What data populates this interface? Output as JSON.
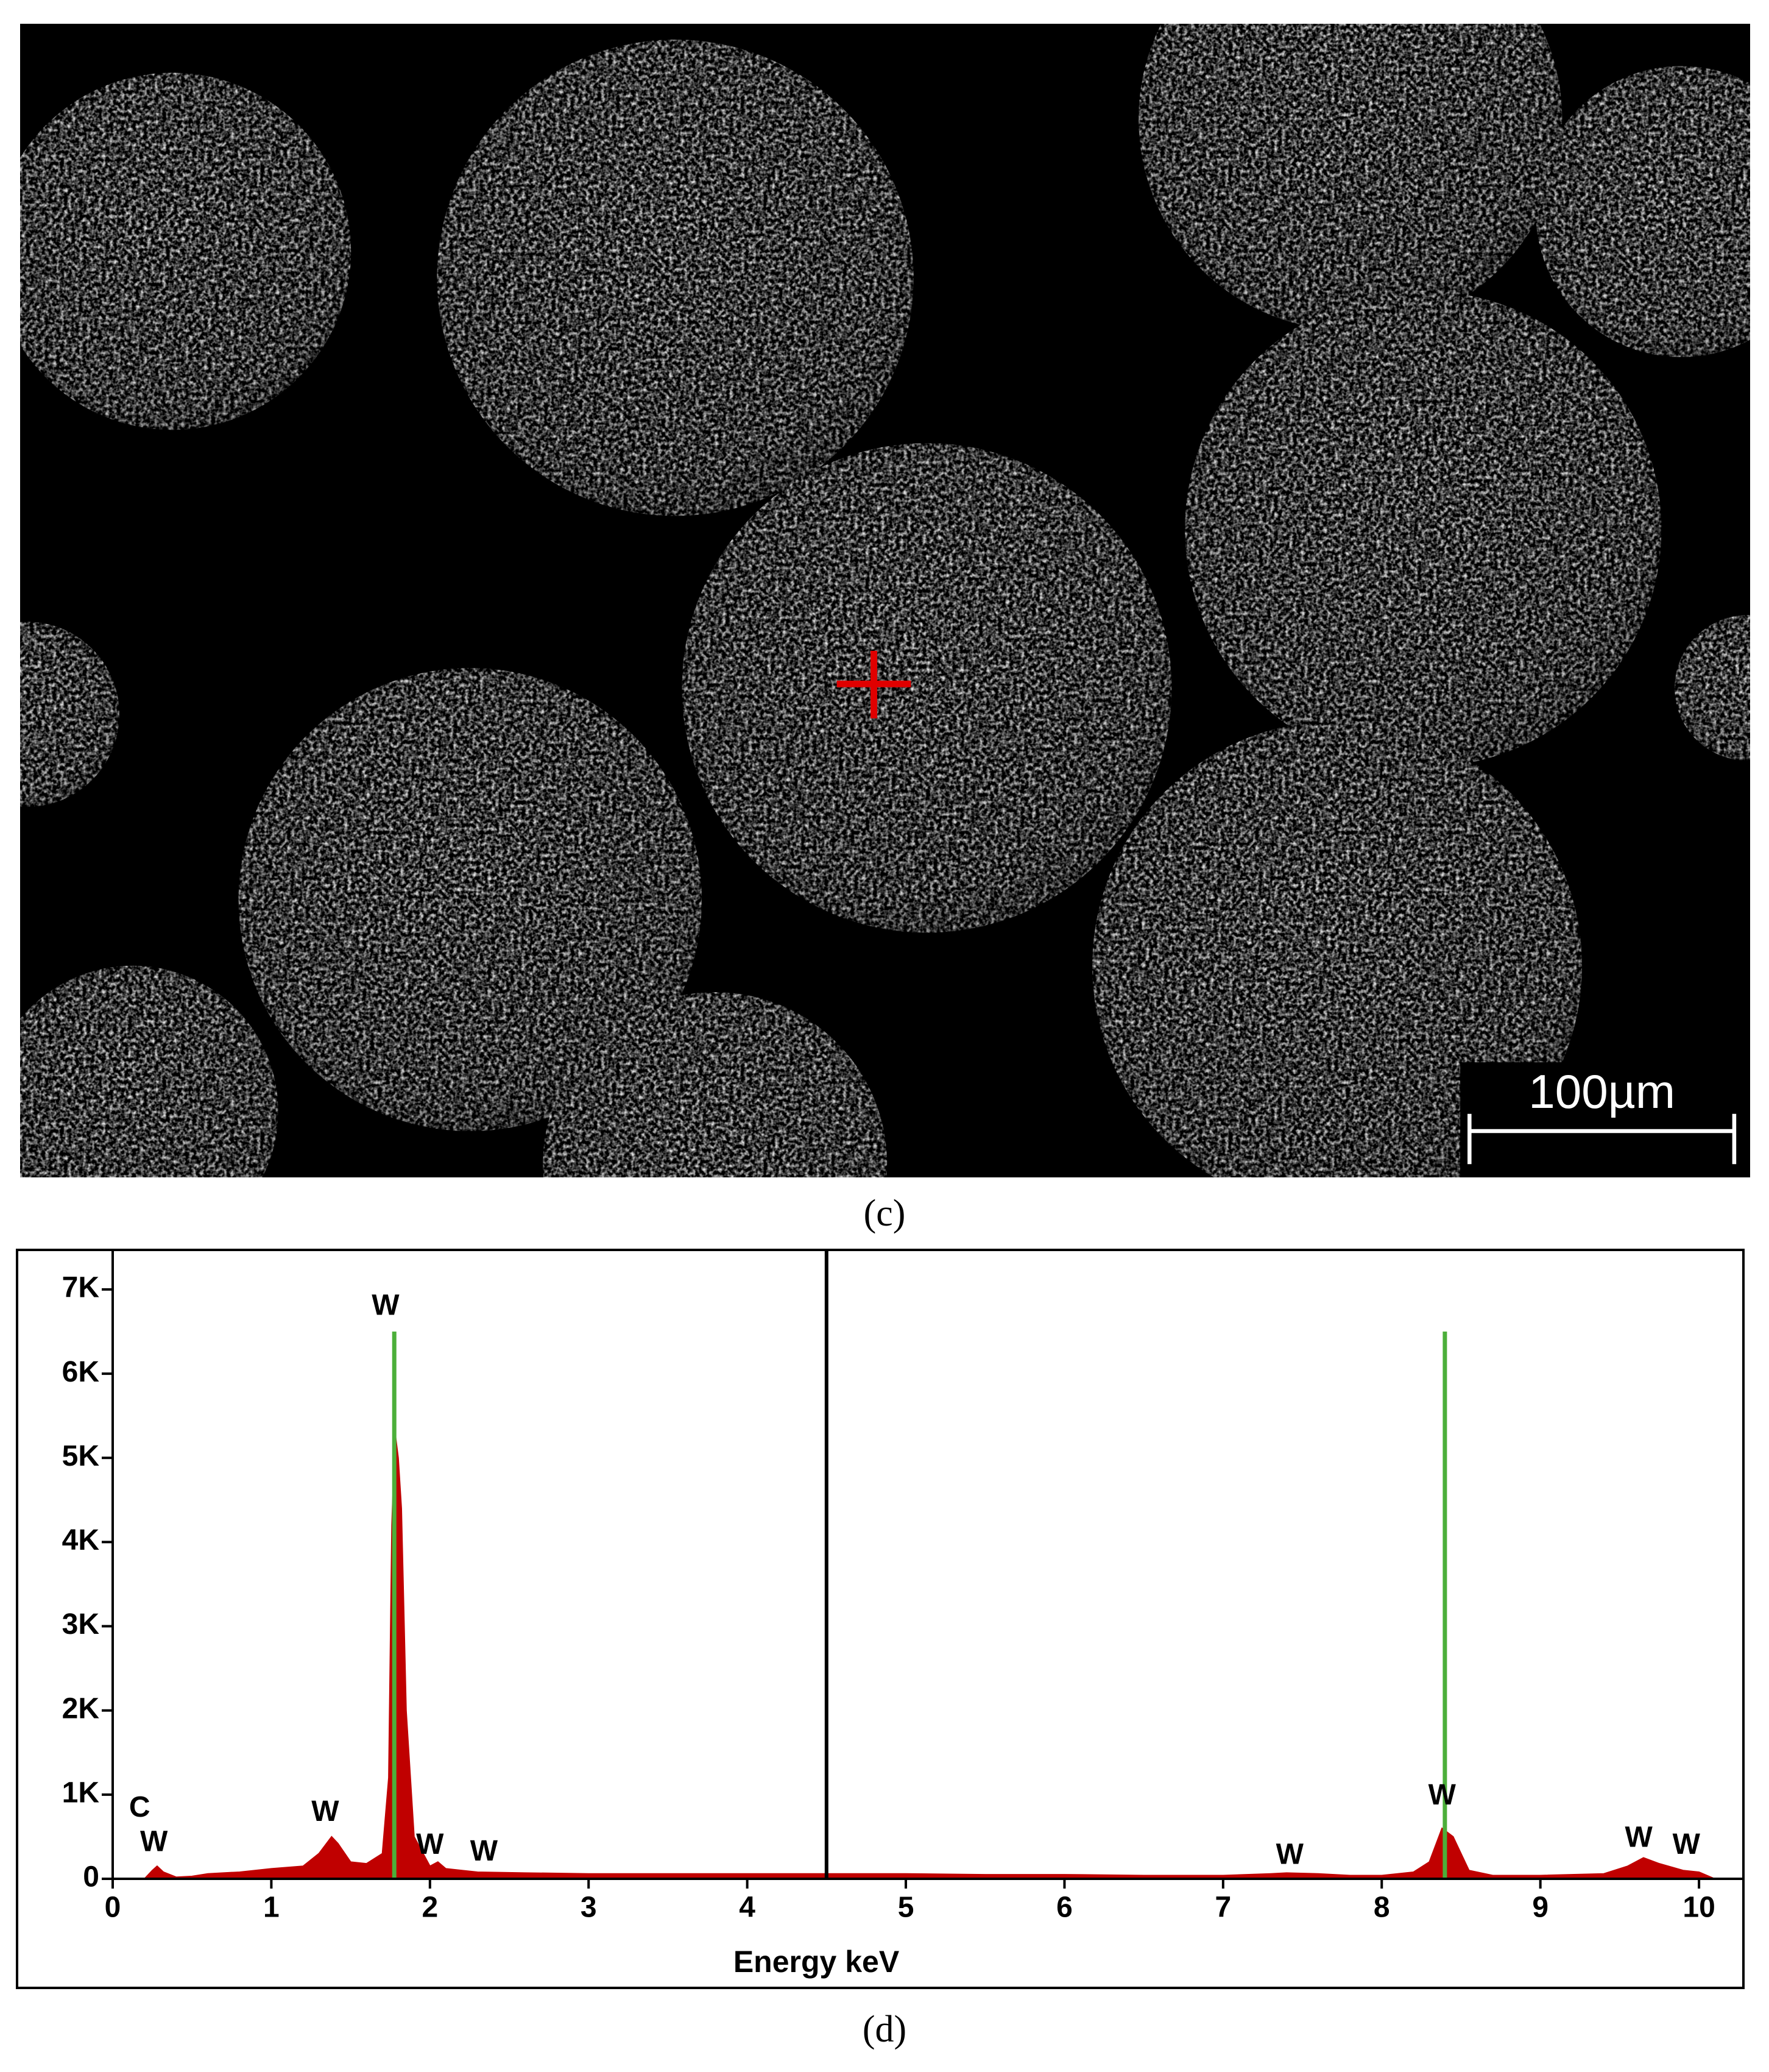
{
  "panel_c": {
    "scale_bar": "100µm",
    "caption": "(c)"
  },
  "chart_data": {
    "type": "area",
    "x_label": "Energy keV",
    "caption": "(d)",
    "xlim": [
      0,
      10.28
    ],
    "ylim": [
      0,
      7470
    ],
    "xticks": [
      0,
      1,
      2,
      3,
      4,
      5,
      6,
      7,
      8,
      9,
      10
    ],
    "yticks": [
      0,
      {
        "value": 1000,
        "label": "1K"
      },
      {
        "value": 2000,
        "label": "2K"
      },
      {
        "value": 3000,
        "label": "3K"
      },
      {
        "value": 4000,
        "label": "4K"
      },
      {
        "value": 5000,
        "label": "5K"
      },
      {
        "value": 6000,
        "label": "6K"
      },
      {
        "value": 7000,
        "label": "7K"
      }
    ],
    "x": [
      0.2,
      0.25,
      0.28,
      0.32,
      0.4,
      0.5,
      0.6,
      0.8,
      1.0,
      1.2,
      1.3,
      1.38,
      1.42,
      1.5,
      1.6,
      1.7,
      1.74,
      1.76,
      1.78,
      1.8,
      1.82,
      1.85,
      1.9,
      2.0,
      2.05,
      2.1,
      2.3,
      2.6,
      3,
      3.5,
      4,
      4.5,
      5,
      5.5,
      6,
      6.5,
      7,
      7.3,
      7.4,
      7.6,
      7.8,
      8.0,
      8.2,
      8.3,
      8.38,
      8.45,
      8.55,
      8.7,
      9,
      9.4,
      9.55,
      9.65,
      9.75,
      9.9,
      10,
      10.1
    ],
    "series": [
      {
        "color": "#c00000",
        "values": [
          0,
          100,
          150,
          80,
          20,
          30,
          60,
          80,
          120,
          150,
          300,
          500,
          420,
          200,
          180,
          300,
          1200,
          4200,
          5300,
          5000,
          4400,
          2000,
          500,
          150,
          200,
          120,
          80,
          70,
          60,
          60,
          60,
          60,
          60,
          50,
          50,
          40,
          40,
          60,
          70,
          60,
          40,
          40,
          80,
          200,
          600,
          500,
          100,
          40,
          40,
          60,
          150,
          250,
          180,
          100,
          80,
          0
        ]
      }
    ],
    "marker_color": "#4caf3a",
    "markers": [
      {
        "x": 1.775,
        "value": 6500
      },
      {
        "x": 8.398,
        "value": 6500
      }
    ],
    "cursor_x": 4.5,
    "annotations": [
      {
        "text": "C",
        "x": 0.17,
        "y": 830
      },
      {
        "text": "W",
        "x": 0.26,
        "y": 420
      },
      {
        "text": "W",
        "x": 1.34,
        "y": 780
      },
      {
        "text": "W",
        "x": 1.72,
        "y": 6790
      },
      {
        "text": "W",
        "x": 2.0,
        "y": 390
      },
      {
        "text": "W",
        "x": 2.34,
        "y": 310
      },
      {
        "text": "W",
        "x": 7.42,
        "y": 270
      },
      {
        "text": "W",
        "x": 8.38,
        "y": 975
      },
      {
        "text": "W",
        "x": 9.62,
        "y": 470
      },
      {
        "text": "W",
        "x": 9.92,
        "y": 390
      }
    ]
  }
}
